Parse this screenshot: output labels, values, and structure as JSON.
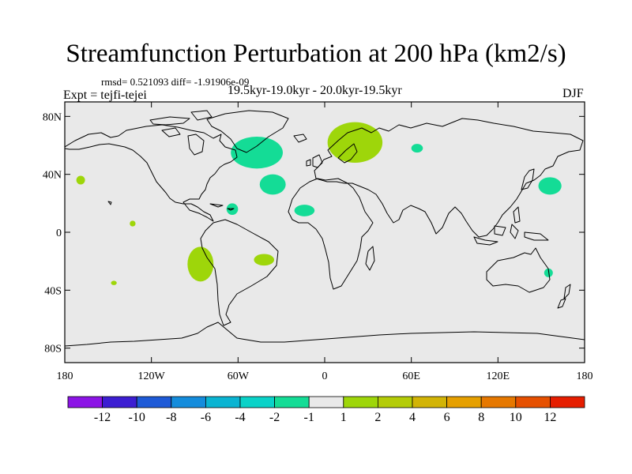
{
  "title": "Streamfunction Perturbation at 200 hPa (km2/s)",
  "stats": "rmsd= 0.521093 diff= -1.91906e-09",
  "subtitle": "19.5kyr-19.0kyr - 20.0kyr-19.5kyr",
  "left_label": "Expt = tejfi-tejei",
  "right_label": "DJF",
  "colors": {
    "background": "#e9e9e9",
    "positive_1_2": "#9ed60a",
    "negative_2_1": "#14dc96",
    "coast": "#000000"
  },
  "map": {
    "lon_range": [
      -180,
      180
    ],
    "lat_range": [
      -90,
      90
    ],
    "lat_ticks": [
      {
        "lat": 80,
        "label": "80N"
      },
      {
        "lat": 40,
        "label": "40N"
      },
      {
        "lat": 0,
        "label": "0"
      },
      {
        "lat": -40,
        "label": "40S"
      },
      {
        "lat": -80,
        "label": "80S"
      }
    ],
    "lon_ticks": [
      {
        "lon": -180,
        "label": "180"
      },
      {
        "lon": -120,
        "label": "120W"
      },
      {
        "lon": -60,
        "label": "60W"
      },
      {
        "lon": 0,
        "label": "0"
      },
      {
        "lon": 60,
        "label": "60E"
      },
      {
        "lon": 120,
        "label": "120E"
      },
      {
        "lon": 180,
        "label": "180"
      }
    ]
  },
  "colorbar": {
    "colors": [
      "#8c14e6",
      "#3c1ed2",
      "#1e5ad7",
      "#148cdc",
      "#0ab4d2",
      "#0ad2c8",
      "#14dc96",
      "#e9e9e9",
      "#9ed60a",
      "#b4cc08",
      "#d2b406",
      "#e6a000",
      "#e67800",
      "#e65000",
      "#e61e00"
    ],
    "labels": [
      "-12",
      "-10",
      "-8",
      "-6",
      "-4",
      "-2",
      "-1",
      "1",
      "2",
      "4",
      "6",
      "8",
      "10",
      "12"
    ]
  },
  "anomalies": [
    {
      "name": "anomaly-north-atlantic",
      "level": "-2..-1",
      "color": "#14dc96",
      "lon": -47,
      "lat": 55,
      "rlon": 18,
      "rlat": 11
    },
    {
      "name": "anomaly-mid-atlantic",
      "level": "-2..-1",
      "color": "#14dc96",
      "lon": -36,
      "lat": 33,
      "rlon": 9,
      "rlat": 7
    },
    {
      "name": "anomaly-caribbean",
      "level": "-2..-1",
      "color": "#14dc96",
      "lon": -64,
      "lat": 16,
      "rlon": 4,
      "rlat": 4
    },
    {
      "name": "anomaly-west-africa",
      "level": "-2..-1",
      "color": "#14dc96",
      "lon": -14,
      "lat": 15,
      "rlon": 7,
      "rlat": 4
    },
    {
      "name": "anomaly-west-asia",
      "level": "-2..-1",
      "color": "#14dc96",
      "lon": 64,
      "lat": 58,
      "rlon": 4,
      "rlat": 3
    },
    {
      "name": "anomaly-west-pacific",
      "level": "-2..-1",
      "color": "#14dc96",
      "lon": 156,
      "lat": 32,
      "rlon": 8,
      "rlat": 6
    },
    {
      "name": "anomaly-east-australia",
      "level": "-2..-1",
      "color": "#14dc96",
      "lon": 155,
      "lat": -28,
      "rlon": 3,
      "rlat": 3
    },
    {
      "name": "anomaly-scandinavia",
      "level": "1..2",
      "color": "#9ed60a",
      "lon": 21,
      "lat": 62,
      "rlon": 19,
      "rlat": 14
    },
    {
      "name": "anomaly-east-pacific-north",
      "level": "1..2",
      "color": "#9ed60a",
      "lon": -169,
      "lat": 36,
      "rlon": 3,
      "rlat": 3
    },
    {
      "name": "anomaly-east-pacific-equator",
      "level": "1..2",
      "color": "#9ed60a",
      "lon": -133,
      "lat": 6,
      "rlon": 2,
      "rlat": 2
    },
    {
      "name": "anomaly-south-pacific",
      "level": "1..2",
      "color": "#9ed60a",
      "lon": -86,
      "lat": -22,
      "rlon": 9,
      "rlat": 12
    },
    {
      "name": "anomaly-south-atlantic",
      "level": "1..2",
      "color": "#9ed60a",
      "lon": -42,
      "lat": -19,
      "rlon": 7,
      "rlat": 4
    },
    {
      "name": "anomaly-southeast-pacific",
      "level": "1..2",
      "color": "#9ed60a",
      "lon": -146,
      "lat": -35,
      "rlon": 2,
      "rlat": 1.5
    }
  ]
}
